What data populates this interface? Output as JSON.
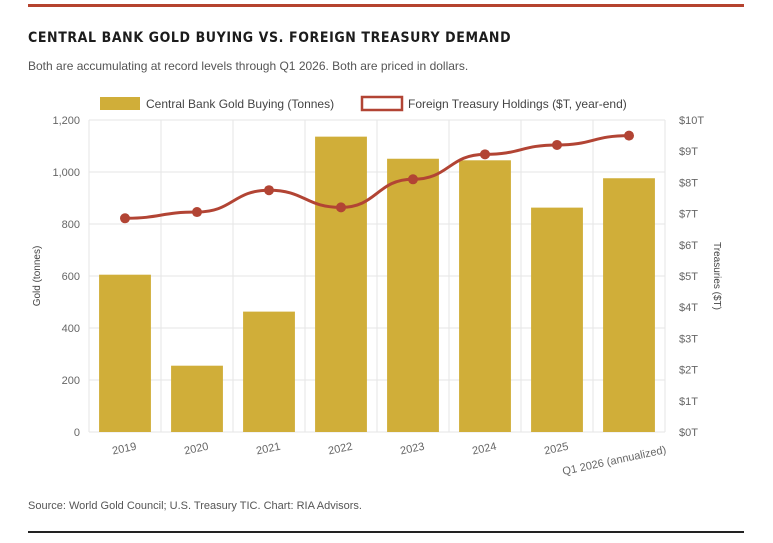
{
  "header": {
    "title": "CENTRAL BANK GOLD BUYING VS. FOREIGN TREASURY DEMAND",
    "subtitle": "Both are accumulating at record levels through Q1 2026. Both are priced in dollars."
  },
  "footer": {
    "source": "Source: World Gold Council; U.S. Treasury TIC. Chart: RIA Advisors."
  },
  "colors": {
    "bar": "#d0ae39",
    "line": "#b24434",
    "grid": "#e6e6e6",
    "axis_text": "#666666",
    "top_rule": "#b5432f"
  },
  "chart_data": {
    "type": "bar",
    "categories": [
      "2019",
      "2020",
      "2021",
      "2022",
      "2023",
      "2024",
      "2025",
      "Q1 2026 (annualized)"
    ],
    "series": [
      {
        "name": "Central Bank Gold Buying (Tonnes)",
        "type": "bar",
        "axis": "left",
        "values": [
          605,
          255,
          463,
          1136,
          1051,
          1045,
          863,
          976
        ]
      },
      {
        "name": "Foreign Treasury Holdings ($T, year-end)",
        "type": "line",
        "axis": "right",
        "values": [
          6.85,
          7.05,
          7.75,
          7.2,
          8.1,
          8.9,
          9.2,
          9.5
        ]
      }
    ],
    "ylabel": "Gold (tonnes)",
    "y2label": "Treasuries ($T)",
    "ylim": [
      0,
      1200
    ],
    "y2lim": [
      0,
      10
    ],
    "yticks": [
      "0",
      "200",
      "400",
      "600",
      "800",
      "1,000",
      "1,200"
    ],
    "y2ticks": [
      "$0T",
      "$1T",
      "$2T",
      "$3T",
      "$4T",
      "$5T",
      "$6T",
      "$7T",
      "$8T",
      "$9T",
      "$10T"
    ],
    "grid": true,
    "legend_position": "top"
  }
}
